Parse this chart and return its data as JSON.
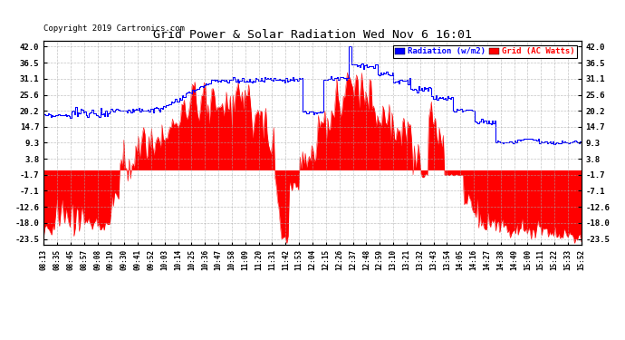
{
  "title": "Grid Power & Solar Radiation Wed Nov 6 16:01",
  "copyright": "Copyright 2019 Cartronics.com",
  "yticks": [
    42.0,
    36.5,
    31.1,
    25.6,
    20.2,
    14.7,
    9.3,
    3.8,
    -1.7,
    -7.1,
    -12.6,
    -18.0,
    -23.5
  ],
  "ylim": [
    -25.5,
    44.0
  ],
  "legend_labels": [
    "Radiation (w/m2)",
    "Grid (AC Watts)"
  ],
  "legend_colors": [
    "blue",
    "red"
  ],
  "bg_color": "#ffffff",
  "grid_color": "#aaaaaa",
  "xtick_labels": [
    "08:13",
    "08:35",
    "08:45",
    "08:57",
    "09:08",
    "09:19",
    "09:30",
    "09:41",
    "09:52",
    "10:03",
    "10:14",
    "10:25",
    "10:36",
    "10:47",
    "10:58",
    "11:09",
    "11:20",
    "11:31",
    "11:42",
    "11:53",
    "12:04",
    "12:15",
    "12:26",
    "12:37",
    "12:48",
    "12:59",
    "13:10",
    "13:21",
    "13:32",
    "13:43",
    "13:54",
    "14:05",
    "14:16",
    "14:27",
    "14:38",
    "14:49",
    "15:00",
    "15:11",
    "15:22",
    "15:33",
    "15:52"
  ],
  "n_points": 410
}
